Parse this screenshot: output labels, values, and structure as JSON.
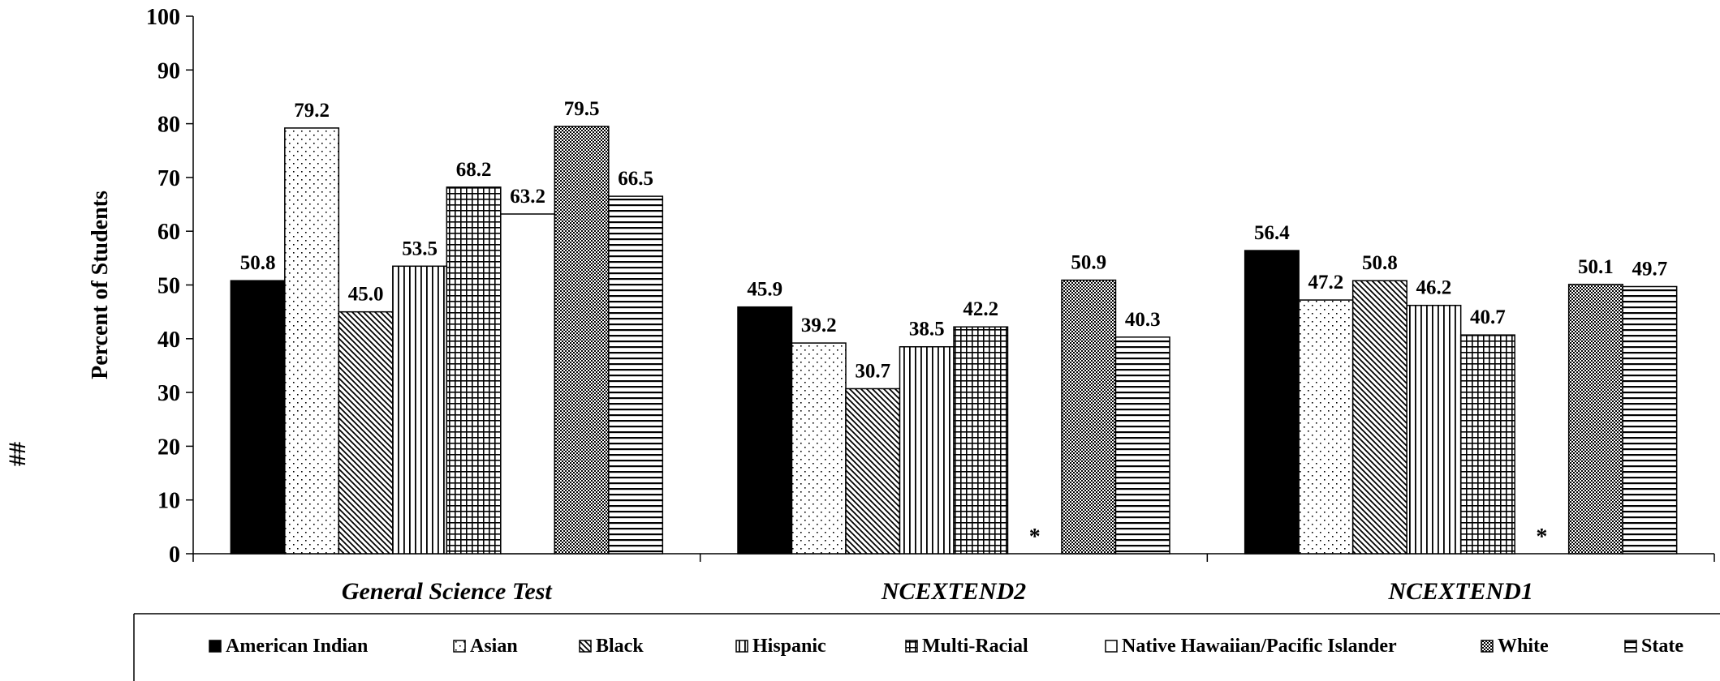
{
  "side_mark": "##",
  "chart_data": {
    "type": "bar",
    "title": "",
    "xlabel": "",
    "ylabel": "Percent of Students",
    "ylim": [
      0,
      100
    ],
    "yticks": [
      0,
      10,
      20,
      30,
      40,
      50,
      60,
      70,
      80,
      90,
      100
    ],
    "grid": false,
    "legend_position": "bottom",
    "categories": [
      "General Science Test",
      "NCEXTEND2",
      "NCEXTEND1"
    ],
    "series": [
      {
        "name": "American Indian",
        "pattern": "solid",
        "values": [
          50.8,
          45.9,
          56.4
        ]
      },
      {
        "name": "Asian",
        "pattern": "dots",
        "values": [
          79.2,
          39.2,
          47.2
        ]
      },
      {
        "name": "Black",
        "pattern": "diagonal",
        "values": [
          45.0,
          30.7,
          50.8
        ]
      },
      {
        "name": "Hispanic",
        "pattern": "vertical",
        "values": [
          53.5,
          38.5,
          46.2
        ]
      },
      {
        "name": "Multi-Racial",
        "pattern": "grid",
        "values": [
          68.2,
          42.2,
          40.7
        ]
      },
      {
        "name": "Native Hawaiian/Pacific Islander",
        "pattern": "blank",
        "values": [
          63.2,
          null,
          null
        ]
      },
      {
        "name": "White",
        "pattern": "checker",
        "values": [
          79.5,
          50.9,
          50.1
        ]
      },
      {
        "name": "State",
        "pattern": "horizontal",
        "values": [
          66.5,
          40.3,
          49.7
        ]
      }
    ],
    "missing_marker": "*",
    "value_format_decimals": 1
  }
}
